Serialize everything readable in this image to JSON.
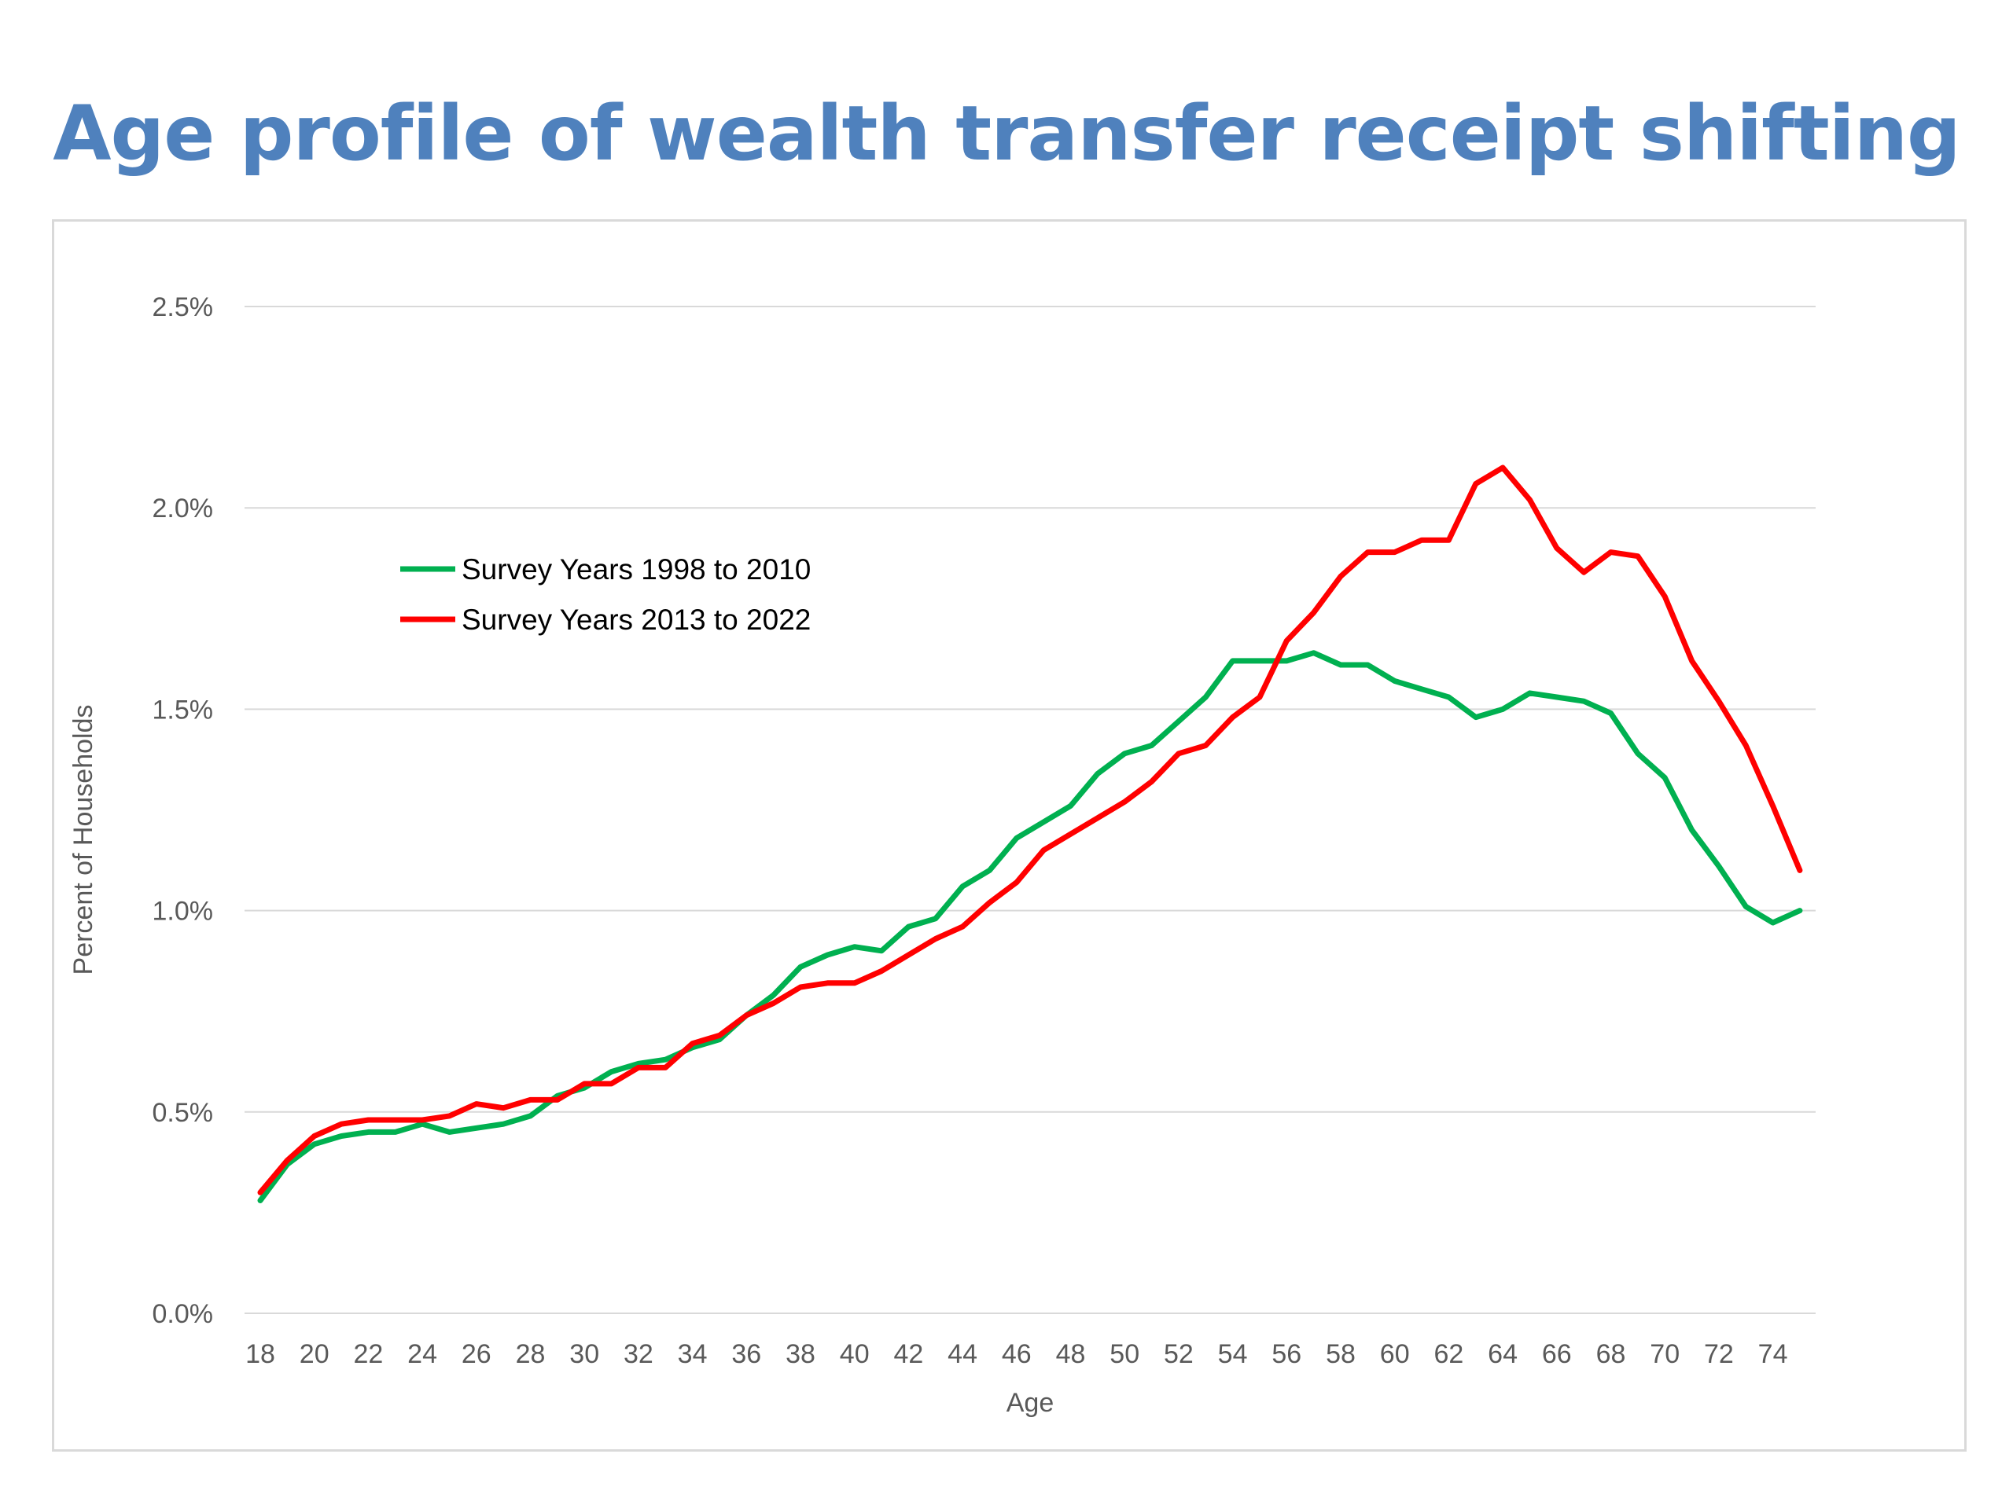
{
  "slide": {
    "title": "Age profile of wealth transfer receipt shifting"
  },
  "chart_data": {
    "type": "line",
    "title": "",
    "xlabel": "Age",
    "ylabel": "Percent of Households",
    "x": [
      18,
      19,
      20,
      21,
      22,
      23,
      24,
      25,
      26,
      27,
      28,
      29,
      30,
      31,
      32,
      33,
      34,
      35,
      36,
      37,
      38,
      39,
      40,
      41,
      42,
      43,
      44,
      45,
      46,
      47,
      48,
      49,
      50,
      51,
      52,
      53,
      54,
      55,
      56,
      57,
      58,
      59,
      60,
      61,
      62,
      63,
      64,
      65,
      66,
      67,
      68,
      69,
      70,
      71,
      72,
      73,
      74,
      75
    ],
    "x_tick_labels": [
      "18",
      "20",
      "22",
      "24",
      "26",
      "28",
      "30",
      "32",
      "34",
      "36",
      "38",
      "40",
      "42",
      "44",
      "46",
      "48",
      "50",
      "52",
      "54",
      "56",
      "58",
      "60",
      "62",
      "64",
      "66",
      "68",
      "70",
      "72",
      "74"
    ],
    "y_tick_labels": [
      "0.0%",
      "0.5%",
      "1.0%",
      "1.5%",
      "2.0%",
      "2.5%"
    ],
    "ylim": [
      0,
      2.5
    ],
    "y_unit": "%",
    "grid": true,
    "legend_position": "upper-left inside plot",
    "series": [
      {
        "name": "Survey Years 1998 to 2010",
        "color": "#00b050",
        "values": [
          0.28,
          0.37,
          0.42,
          0.44,
          0.45,
          0.45,
          0.47,
          0.45,
          0.46,
          0.47,
          0.49,
          0.54,
          0.56,
          0.6,
          0.62,
          0.63,
          0.66,
          0.68,
          0.74,
          0.79,
          0.86,
          0.89,
          0.91,
          0.9,
          0.96,
          0.98,
          1.06,
          1.1,
          1.18,
          1.22,
          1.26,
          1.34,
          1.39,
          1.41,
          1.47,
          1.53,
          1.62,
          1.62,
          1.62,
          1.64,
          1.61,
          1.61,
          1.57,
          1.55,
          1.53,
          1.48,
          1.5,
          1.54,
          1.53,
          1.52,
          1.49,
          1.39,
          1.33,
          1.2,
          1.11,
          1.01,
          0.97,
          1.0
        ]
      },
      {
        "name": "Survey Years 2013 to 2022",
        "color": "#ff0000",
        "values": [
          0.3,
          0.38,
          0.44,
          0.47,
          0.48,
          0.48,
          0.48,
          0.49,
          0.52,
          0.51,
          0.53,
          0.53,
          0.57,
          0.57,
          0.61,
          0.61,
          0.67,
          0.69,
          0.74,
          0.77,
          0.81,
          0.82,
          0.82,
          0.85,
          0.89,
          0.93,
          0.96,
          1.02,
          1.07,
          1.15,
          1.19,
          1.23,
          1.27,
          1.32,
          1.39,
          1.41,
          1.48,
          1.53,
          1.67,
          1.74,
          1.83,
          1.89,
          1.89,
          1.92,
          1.92,
          2.06,
          2.1,
          2.02,
          1.9,
          1.84,
          1.89,
          1.88,
          1.78,
          1.62,
          1.52,
          1.41,
          1.26,
          1.1
        ]
      }
    ]
  }
}
